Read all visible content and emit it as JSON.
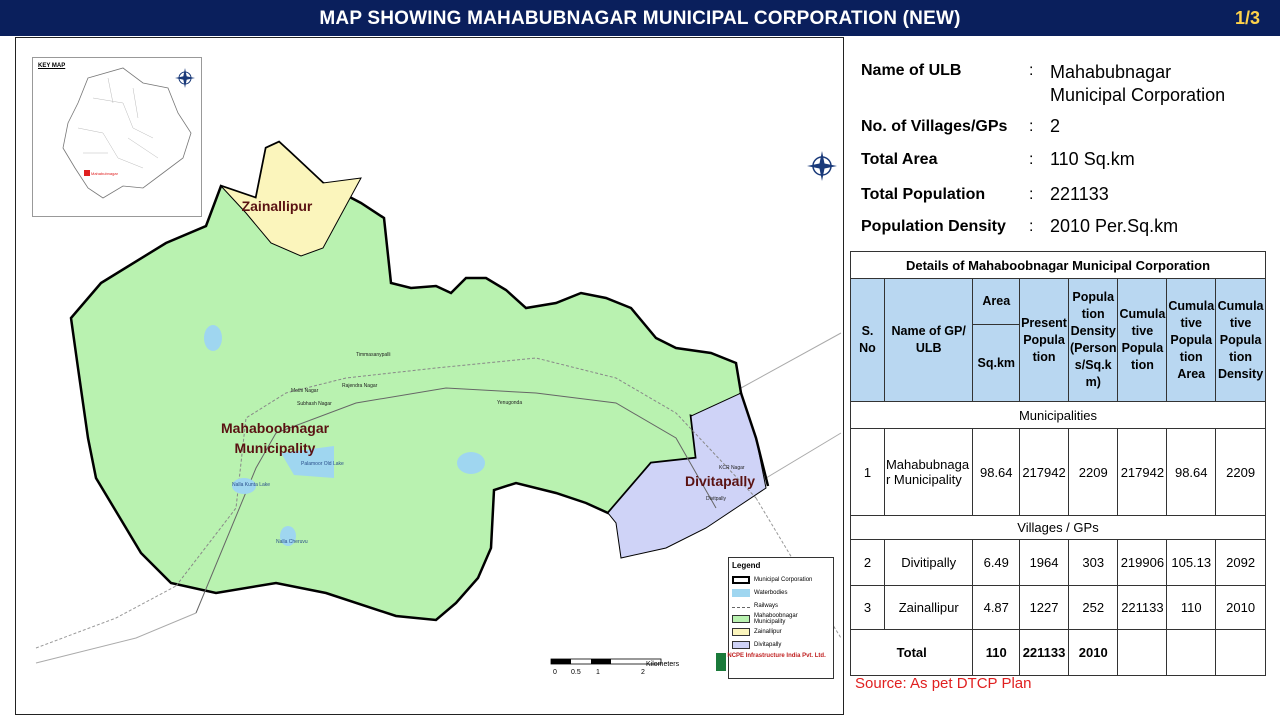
{
  "header": {
    "title": "MAP SHOWING MAHABUBNAGAR MUNICIPAL CORPORATION (NEW)",
    "page": "1/3"
  },
  "map": {
    "keymap_label": "KEY MAP",
    "keymap_marker": "Mahabubnagar",
    "regions": {
      "zainallipur": "Zainallipur",
      "municipality_line1": "Mahaboobnagar",
      "municipality_line2": "Municipality",
      "divitapally": "Divitapally"
    },
    "places": {
      "timmasanypalli": "Timmasanypalli",
      "mothi_nagar": "Mothi Nagar",
      "rajendra_nagar": "Rajendra Nagar",
      "subhash_nagar": "Subhash Nagar",
      "yenugonda": "Yenugonda",
      "palamoor_lake": "Palamoor Old Lake",
      "nalla_kunta": "Nalla Kunta Lake",
      "nalla_cheruvu": "Nalla Cheruvu",
      "kcr_nagar": "KCR Nagar",
      "divitpally": "Divitpally"
    },
    "legend": {
      "title": "Legend",
      "items": [
        {
          "label": "Municipal Corporation",
          "color": "#ffffff"
        },
        {
          "label": "Waterbodies",
          "color": "#9fd6f0"
        },
        {
          "label": "Railways",
          "color": "#888888"
        },
        {
          "label": "Mahaboobnagar Municipality",
          "color": "#b9f2b0"
        },
        {
          "label": "Zainallipur",
          "color": "#fbf5bc"
        },
        {
          "label": "Divitapally",
          "color": "#cfd3f7"
        }
      ]
    },
    "scale": {
      "unit": "Kilometers",
      "ticks": [
        "0",
        "0.5",
        "1",
        "2"
      ]
    },
    "logo": {
      "name": "NCPE Infrastructure India Pvt. Ltd."
    }
  },
  "info": {
    "rows": [
      {
        "label": "Name  of ULB",
        "value": "Mahabubnagar Municipal Corporation"
      },
      {
        "label": "No. of Villages/GPs",
        "value": "2"
      },
      {
        "label": "Total  Area",
        "value": "110 Sq.km"
      },
      {
        "label": "Total Population",
        "value": "221133"
      },
      {
        "label": "Population  Density",
        "value": "2010 Per.Sq.km"
      }
    ]
  },
  "table": {
    "caption": "Details of Mahaboobnagar Municipal Corporation",
    "headers": {
      "sno": "S. No",
      "name": "Name of  GP/ ULB",
      "area": "Area",
      "area_unit": "Sq.km",
      "present_pop": "Present Popula tion",
      "density": "Popula tion Density (Person s/Sq.k m)",
      "cum_pop": "Cumula tive Popula tion",
      "cum_area": "Cumula tive Popula tion Area",
      "cum_density": "Cumula tive Popula tion Density"
    },
    "section_municipalities": "Municipalities",
    "section_villages": "Villages / GPs",
    "rows": [
      {
        "sno": "1",
        "name": "Mahabubnaga r Municipality",
        "area": "98.64",
        "pop": "217942",
        "density": "2209",
        "cum_pop": "217942",
        "cum_area": "98.64",
        "cum_density": "2209"
      },
      {
        "sno": "2",
        "name": "Divitipally",
        "area": "6.49",
        "pop": "1964",
        "density": "303",
        "cum_pop": "219906",
        "cum_area": "105.13",
        "cum_density": "2092"
      },
      {
        "sno": "3",
        "name": "Zainallipur",
        "area": "4.87",
        "pop": "1227",
        "density": "252",
        "cum_pop": "221133",
        "cum_area": "110",
        "cum_density": "2010"
      }
    ],
    "total": {
      "label": "Total",
      "area": "110",
      "pop": "221133",
      "density": "2010"
    }
  },
  "source": "Source: As pet DTCP Plan"
}
